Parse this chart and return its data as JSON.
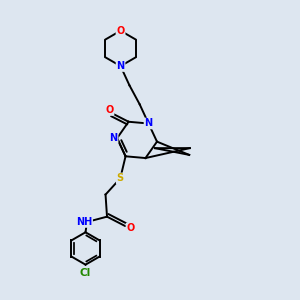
{
  "background_color": "#dde6f0",
  "bond_color": "#000000",
  "atom_colors": {
    "N": "#0000ff",
    "O": "#ff0000",
    "S": "#ccaa00",
    "Cl": "#228800",
    "H": "#777777",
    "C": "#000000"
  },
  "figsize": [
    3.0,
    3.0
  ],
  "dpi": 100
}
